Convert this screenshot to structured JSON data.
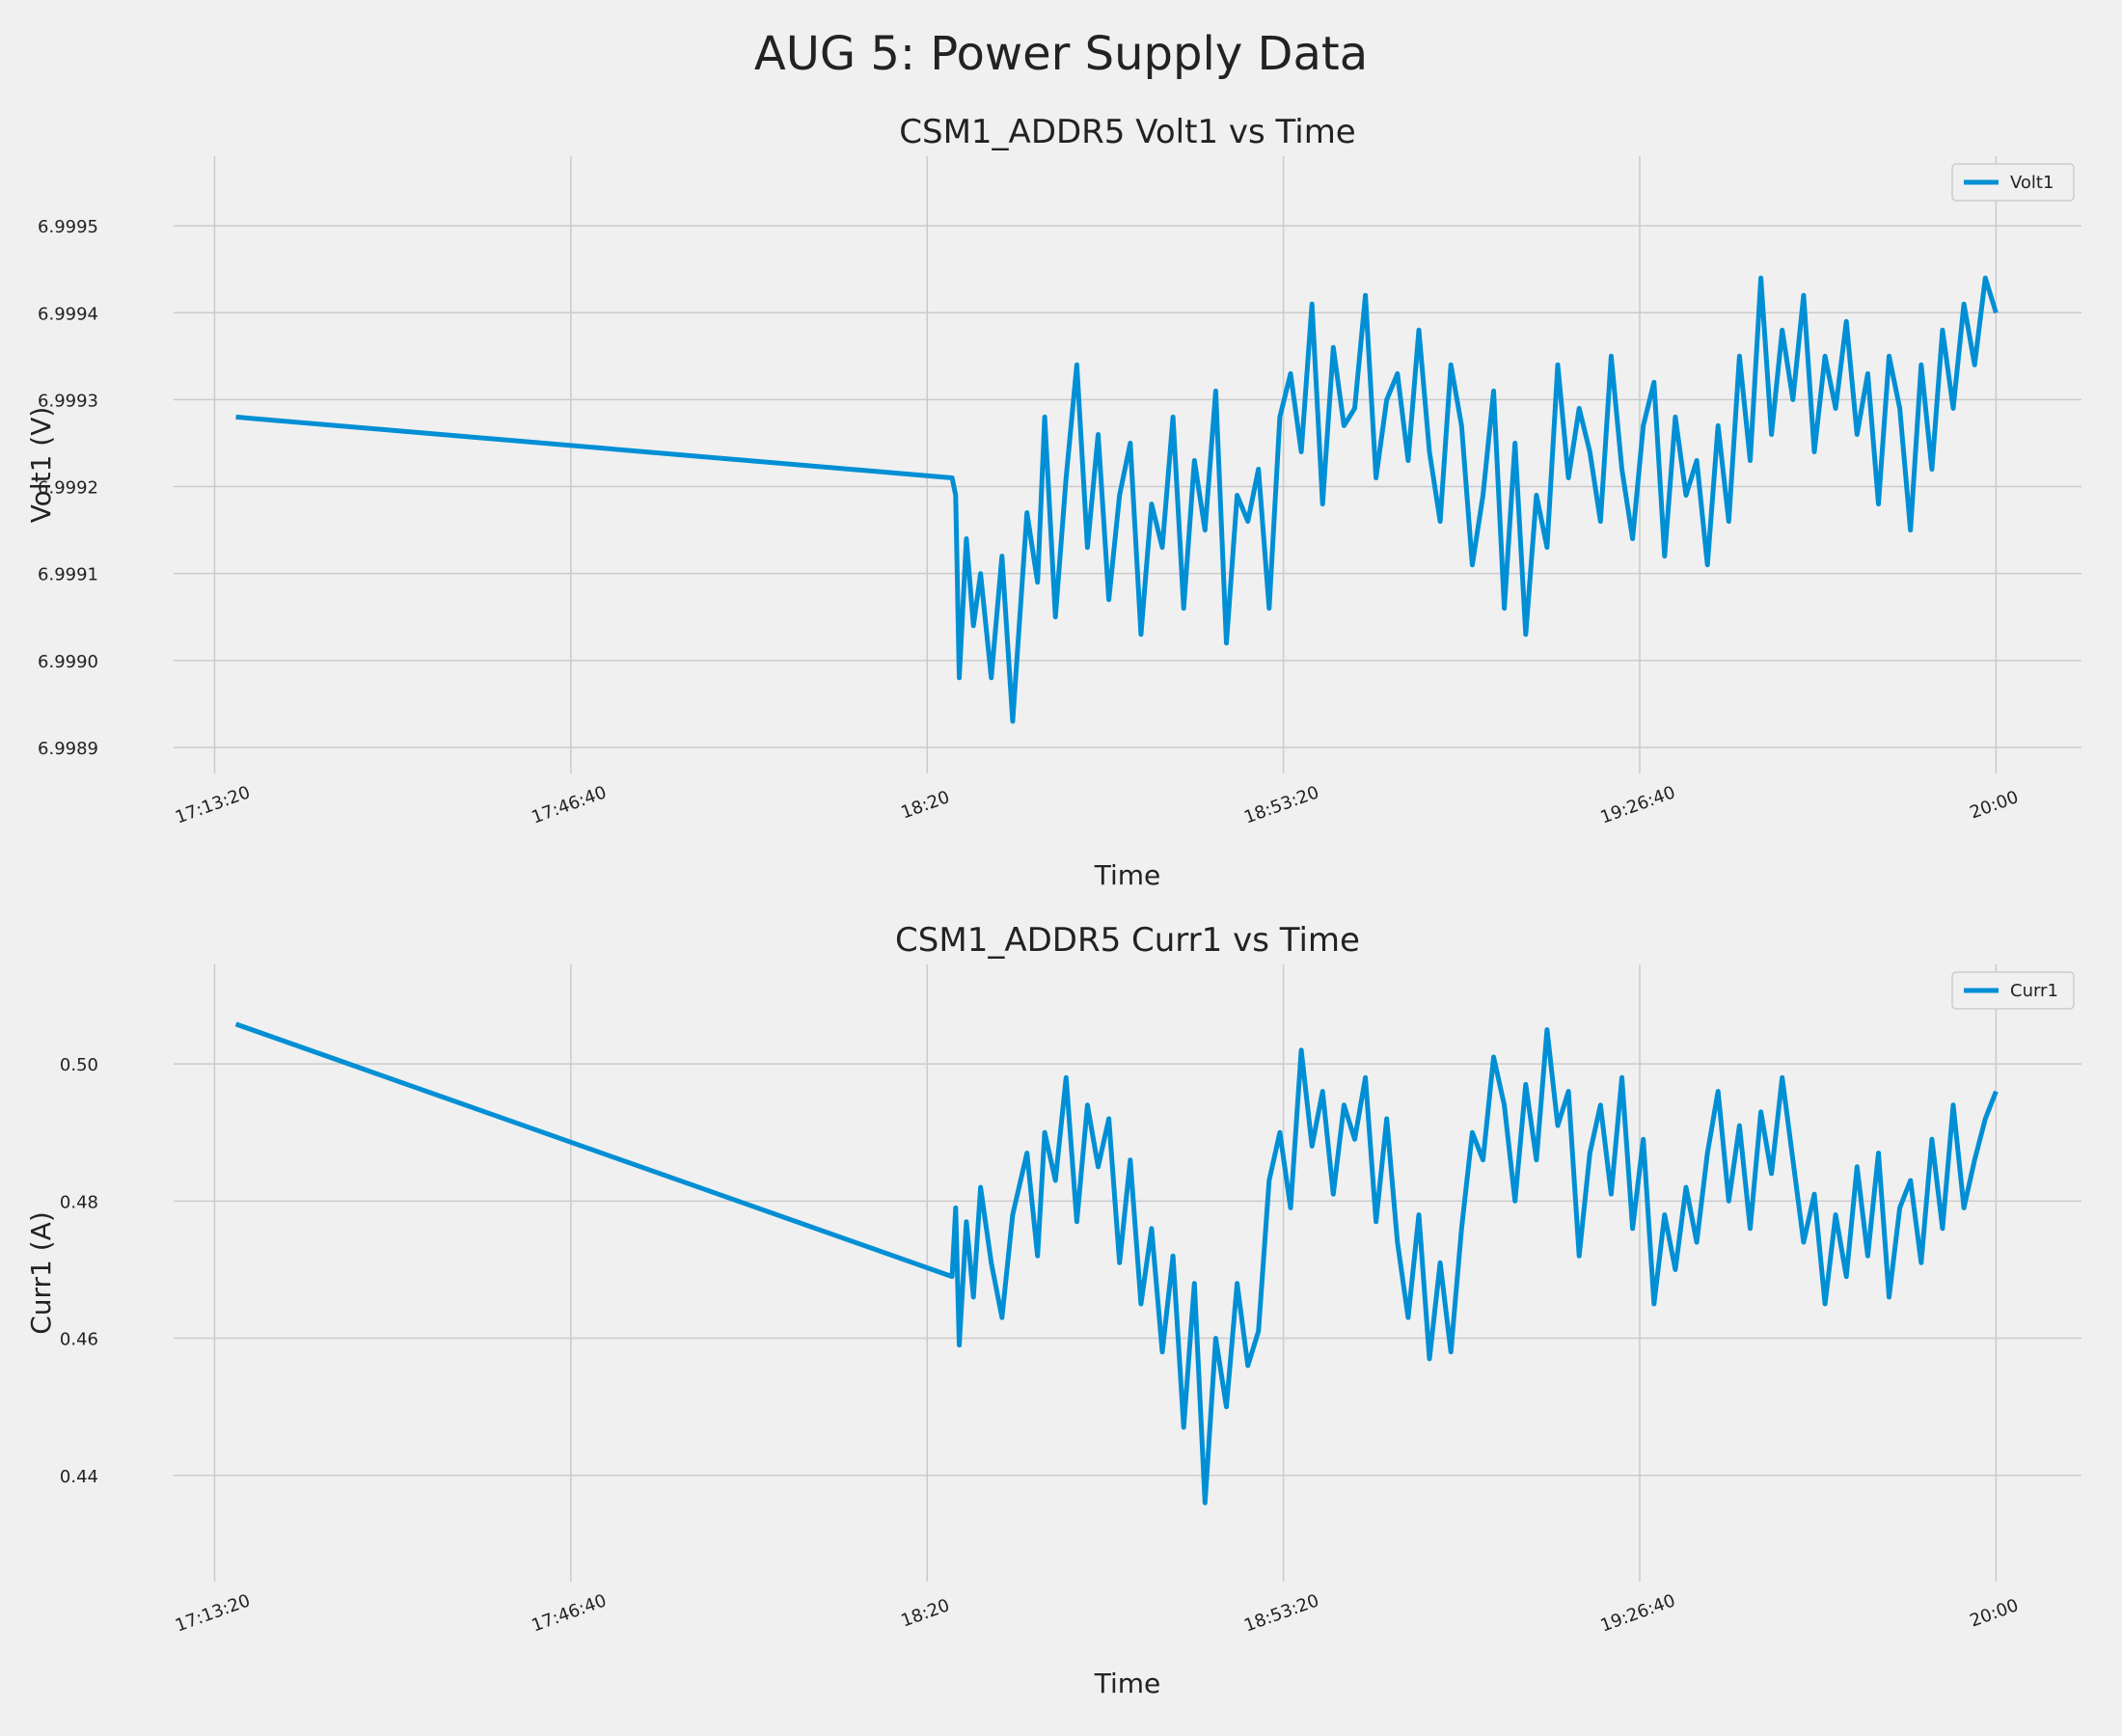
{
  "title": "AUG 5: Power Supply Data",
  "colors": {
    "line": "#008fd5",
    "background": "#f0f0f0",
    "grid": "#cbcbcb"
  },
  "chart_data": [
    {
      "type": "line",
      "title": "CSM1_ADDR5 Volt1 vs Time",
      "xlabel": "Time",
      "ylabel": "Volt1 (V)",
      "x_ticks": [
        "17:13:20",
        "17:46:40",
        "18:20",
        "18:53:20",
        "19:26:40",
        "20:00"
      ],
      "y_ticks": [
        "6.9989",
        "6.9990",
        "6.9991",
        "6.9992",
        "6.9993",
        "6.9994",
        "6.9995"
      ],
      "xlim": [
        "17:09:30",
        "20:08:00"
      ],
      "ylim": [
        6.99887,
        6.99958
      ],
      "grid": true,
      "legend_position": "top-right",
      "series": [
        {
          "name": "Volt1",
          "x": [
            "17:15:20",
            "18:22:20",
            "18:22:40",
            "18:23:00",
            "18:23:40",
            "18:24:20",
            "18:25:00",
            "18:26:00",
            "18:27:00",
            "18:28:00",
            "18:29:20",
            "18:30:20",
            "18:31:00",
            "18:32:00",
            "18:33:00",
            "18:34:00",
            "18:35:00",
            "18:36:00",
            "18:37:00",
            "18:38:00",
            "18:39:00",
            "18:40:00",
            "18:41:00",
            "18:42:00",
            "18:43:00",
            "18:44:00",
            "18:45:00",
            "18:46:00",
            "18:47:00",
            "18:48:00",
            "18:49:00",
            "18:50:00",
            "18:51:00",
            "18:52:00",
            "18:53:00",
            "18:54:00",
            "18:55:00",
            "18:56:00",
            "18:57:00",
            "18:58:00",
            "18:59:00",
            "19:00:00",
            "19:01:00",
            "19:02:00",
            "19:03:00",
            "19:04:00",
            "19:05:00",
            "19:06:00",
            "19:07:00",
            "19:08:00",
            "19:09:00",
            "19:10:00",
            "19:11:00",
            "19:12:00",
            "19:13:00",
            "19:14:00",
            "19:15:00",
            "19:16:00",
            "19:17:00",
            "19:18:00",
            "19:19:00",
            "19:20:00",
            "19:21:00",
            "19:22:00",
            "19:23:00",
            "19:24:00",
            "19:25:00",
            "19:26:00",
            "19:27:00",
            "19:28:00",
            "19:29:00",
            "19:30:00",
            "19:31:00",
            "19:32:00",
            "19:33:00",
            "19:34:00",
            "19:35:00",
            "19:36:00",
            "19:37:00",
            "19:38:00",
            "19:39:00",
            "19:40:00",
            "19:41:00",
            "19:42:00",
            "19:43:00",
            "19:44:00",
            "19:45:00",
            "19:46:00",
            "19:47:00",
            "19:48:00",
            "19:49:00",
            "19:50:00",
            "19:51:00",
            "19:52:00",
            "19:53:00",
            "19:54:00",
            "19:55:00",
            "19:56:00",
            "19:57:00",
            "19:58:00",
            "19:59:00",
            "20:00:00"
          ],
          "y": [
            6.99928,
            6.99921,
            6.99919,
            6.99898,
            6.99914,
            6.99904,
            6.9991,
            6.99898,
            6.99912,
            6.99893,
            6.99917,
            6.99909,
            6.99928,
            6.99905,
            6.99921,
            6.99934,
            6.99913,
            6.99926,
            6.99907,
            6.99919,
            6.99925,
            6.99903,
            6.99918,
            6.99913,
            6.99928,
            6.99906,
            6.99923,
            6.99915,
            6.99931,
            6.99902,
            6.99919,
            6.99916,
            6.99922,
            6.99906,
            6.99928,
            6.99933,
            6.99924,
            6.99941,
            6.99918,
            6.99936,
            6.99927,
            6.99929,
            6.99942,
            6.99921,
            6.9993,
            6.99933,
            6.99923,
            6.99938,
            6.99924,
            6.99916,
            6.99934,
            6.99927,
            6.99911,
            6.99919,
            6.99931,
            6.99906,
            6.99925,
            6.99903,
            6.99919,
            6.99913,
            6.99934,
            6.99921,
            6.99929,
            6.99924,
            6.99916,
            6.99935,
            6.99922,
            6.99914,
            6.99927,
            6.99932,
            6.99912,
            6.99928,
            6.99919,
            6.99923,
            6.99911,
            6.99927,
            6.99916,
            6.99935,
            6.99923,
            6.99944,
            6.99926,
            6.99938,
            6.9993,
            6.99942,
            6.99924,
            6.99935,
            6.99929,
            6.99939,
            6.99926,
            6.99933,
            6.99918,
            6.99935,
            6.99929,
            6.99915,
            6.99934,
            6.99922,
            6.99938,
            6.99929,
            6.99941,
            6.99934,
            6.99944,
            6.9994
          ]
        }
      ]
    },
    {
      "type": "line",
      "title": "CSM1_ADDR5 Curr1 vs Time",
      "xlabel": "Time",
      "ylabel": "Curr1 (A)",
      "x_ticks": [
        "17:13:20",
        "17:46:40",
        "18:20",
        "18:53:20",
        "19:26:40",
        "20:00"
      ],
      "y_ticks": [
        "0.44",
        "0.46",
        "0.48",
        "0.50"
      ],
      "xlim": [
        "17:09:30",
        "20:08:00"
      ],
      "ylim": [
        0.4245,
        0.5145
      ],
      "grid": true,
      "legend_position": "top-right",
      "series": [
        {
          "name": "Curr1",
          "x": [
            "17:15:20",
            "18:22:20",
            "18:22:40",
            "18:23:00",
            "18:23:40",
            "18:24:20",
            "18:25:00",
            "18:26:00",
            "18:27:00",
            "18:28:00",
            "18:29:20",
            "18:30:20",
            "18:31:00",
            "18:32:00",
            "18:33:00",
            "18:34:00",
            "18:35:00",
            "18:36:00",
            "18:37:00",
            "18:38:00",
            "18:39:00",
            "18:40:00",
            "18:41:00",
            "18:42:00",
            "18:43:00",
            "18:44:00",
            "18:45:00",
            "18:46:00",
            "18:47:00",
            "18:48:00",
            "18:49:00",
            "18:50:00",
            "18:51:00",
            "18:52:00",
            "18:53:00",
            "18:54:00",
            "18:55:00",
            "18:56:00",
            "18:57:00",
            "18:58:00",
            "18:59:00",
            "19:00:00",
            "19:01:00",
            "19:02:00",
            "19:03:00",
            "19:04:00",
            "19:05:00",
            "19:06:00",
            "19:07:00",
            "19:08:00",
            "19:09:00",
            "19:10:00",
            "19:11:00",
            "19:12:00",
            "19:13:00",
            "19:14:00",
            "19:15:00",
            "19:16:00",
            "19:17:00",
            "19:18:00",
            "19:19:00",
            "19:20:00",
            "19:21:00",
            "19:22:00",
            "19:23:00",
            "19:24:00",
            "19:25:00",
            "19:26:00",
            "19:27:00",
            "19:28:00",
            "19:29:00",
            "19:30:00",
            "19:31:00",
            "19:32:00",
            "19:33:00",
            "19:34:00",
            "19:35:00",
            "19:36:00",
            "19:37:00",
            "19:38:00",
            "19:39:00",
            "19:40:00",
            "19:41:00",
            "19:42:00",
            "19:43:00",
            "19:44:00",
            "19:45:00",
            "19:46:00",
            "19:47:00",
            "19:48:00",
            "19:49:00",
            "19:50:00",
            "19:51:00",
            "19:52:00",
            "19:53:00",
            "19:54:00",
            "19:55:00",
            "19:56:00",
            "19:57:00",
            "19:58:00",
            "19:59:00",
            "20:00:00"
          ],
          "y": [
            0.5058,
            0.469,
            0.479,
            0.459,
            0.477,
            0.466,
            0.482,
            0.471,
            0.463,
            0.478,
            0.487,
            0.472,
            0.49,
            0.483,
            0.498,
            0.477,
            0.494,
            0.485,
            0.492,
            0.471,
            0.486,
            0.465,
            0.476,
            0.458,
            0.472,
            0.447,
            0.468,
            0.436,
            0.46,
            0.45,
            0.468,
            0.456,
            0.461,
            0.483,
            0.49,
            0.479,
            0.502,
            0.488,
            0.496,
            0.481,
            0.494,
            0.489,
            0.498,
            0.477,
            0.492,
            0.474,
            0.463,
            0.478,
            0.457,
            0.471,
            0.458,
            0.476,
            0.49,
            0.486,
            0.501,
            0.494,
            0.48,
            0.497,
            0.486,
            0.505,
            0.491,
            0.496,
            0.472,
            0.487,
            0.494,
            0.481,
            0.498,
            0.476,
            0.489,
            0.465,
            0.478,
            0.47,
            0.482,
            0.474,
            0.487,
            0.496,
            0.48,
            0.491,
            0.476,
            0.493,
            0.484,
            0.498,
            0.486,
            0.474,
            0.481,
            0.465,
            0.478,
            0.469,
            0.485,
            0.472,
            0.487,
            0.466,
            0.479,
            0.483,
            0.471,
            0.489,
            0.476,
            0.494,
            0.479,
            0.486,
            0.492,
            0.496
          ]
        }
      ]
    }
  ]
}
